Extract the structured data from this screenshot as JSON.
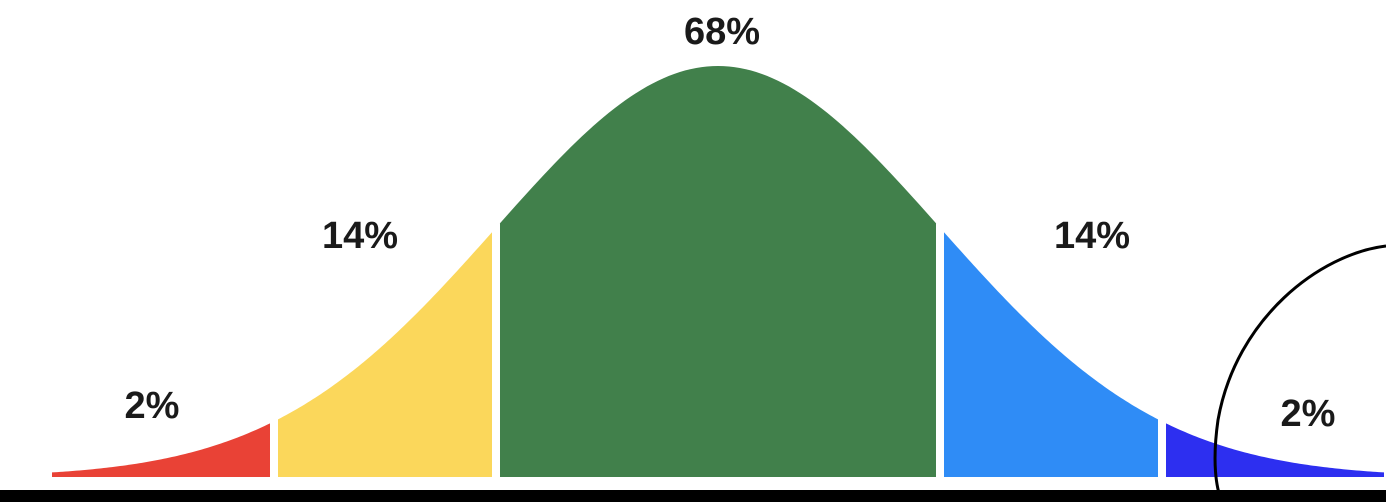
{
  "chart_data": {
    "type": "area",
    "title": "",
    "xlabel": "",
    "ylabel": "",
    "distribution": "normal",
    "xlim": [
      -3,
      3
    ],
    "grid": false,
    "legend": "none",
    "series": [
      {
        "value": "2%",
        "x_from": -3,
        "x_to": -2,
        "color": "#e94236"
      },
      {
        "value": "14%",
        "x_from": -2,
        "x_to": -1,
        "color": "#fbd75b"
      },
      {
        "value": "68%",
        "x_from": -1,
        "x_to": 1,
        "color": "#41804b"
      },
      {
        "value": "14%",
        "x_from": 1,
        "x_to": 2,
        "color": "#2f8cf6"
      },
      {
        "value": "2%",
        "x_from": 2,
        "x_to": 3,
        "color": "#2d2ff0"
      }
    ],
    "annotation": {
      "type": "circle",
      "around": "2%",
      "color": "#000000"
    },
    "baseline_color": "#000000"
  }
}
